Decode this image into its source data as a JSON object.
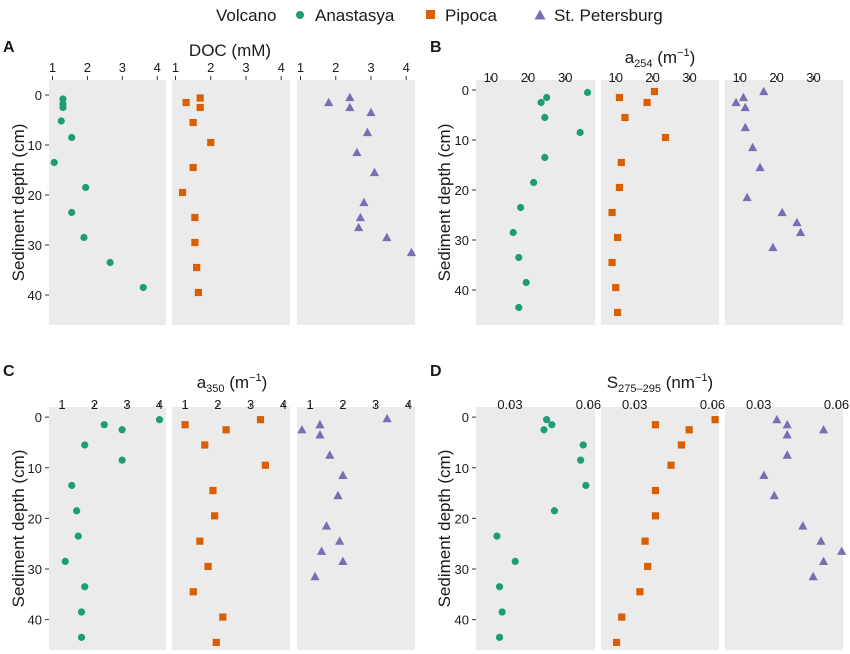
{
  "legend": {
    "title": "Volcano",
    "items": [
      {
        "label": "Anastasya",
        "color": "#1b9e77",
        "shape": "circle"
      },
      {
        "label": "Pipoca",
        "color": "#d95f02",
        "shape": "square"
      },
      {
        "label": "St. Petersburg",
        "color": "#7570b3",
        "shape": "triangle"
      }
    ]
  },
  "ylabel": "Sediment depth (cm)",
  "chart_data": [
    {
      "type": "scatter",
      "panel_letter": "A",
      "title": "DOC (mM)",
      "ylabel": "Sediment depth (cm)",
      "ylim": [
        -3,
        46
      ],
      "yticks": [
        0,
        10,
        20,
        30,
        40
      ],
      "facets": [
        {
          "series": "Anastasya",
          "xlim": [
            0.9,
            4.25
          ],
          "xticks": [
            1,
            2,
            3,
            4
          ],
          "points": [
            [
              1.3,
              0.8
            ],
            [
              1.3,
              1.8
            ],
            [
              1.3,
              2.5
            ],
            [
              1.25,
              5.2
            ],
            [
              1.55,
              8.5
            ],
            [
              1.05,
              13.5
            ],
            [
              1.95,
              18.5
            ],
            [
              1.55,
              23.5
            ],
            [
              1.9,
              28.5
            ],
            [
              2.65,
              33.5
            ],
            [
              3.6,
              38.5
            ]
          ]
        },
        {
          "series": "Pipoca",
          "xlim": [
            0.9,
            4.25
          ],
          "xticks": [
            1,
            2,
            3,
            4
          ],
          "points": [
            [
              1.7,
              0.6
            ],
            [
              1.3,
              1.5
            ],
            [
              1.7,
              2.5
            ],
            [
              1.5,
              5.5
            ],
            [
              2.0,
              9.5
            ],
            [
              1.5,
              14.5
            ],
            [
              1.2,
              19.5
            ],
            [
              1.55,
              24.5
            ],
            [
              1.55,
              29.5
            ],
            [
              1.6,
              34.5
            ],
            [
              1.65,
              39.5
            ]
          ]
        },
        {
          "series": "St. Petersburg",
          "xlim": [
            0.9,
            4.25
          ],
          "xticks": [
            1,
            2,
            3,
            4
          ],
          "points": [
            [
              2.4,
              0.5
            ],
            [
              1.8,
              1.5
            ],
            [
              2.4,
              2.5
            ],
            [
              3.0,
              3.5
            ],
            [
              2.9,
              7.5
            ],
            [
              2.6,
              11.5
            ],
            [
              3.1,
              15.5
            ],
            [
              2.8,
              21.5
            ],
            [
              2.7,
              24.5
            ],
            [
              2.65,
              26.5
            ],
            [
              3.45,
              28.5
            ],
            [
              4.15,
              31.5
            ]
          ]
        }
      ]
    },
    {
      "type": "scatter",
      "panel_letter": "B",
      "title": "a254 (m−1)",
      "title_parts": [
        "a",
        "254",
        " (m",
        "−1",
        ")"
      ],
      "ylabel": "Sediment depth (cm)",
      "ylim": [
        -2,
        47
      ],
      "yticks": [
        0,
        10,
        20,
        30,
        40
      ],
      "facets": [
        {
          "series": "Anastasya",
          "xlim": [
            6,
            38
          ],
          "xticks": [
            10,
            20,
            30
          ],
          "points": [
            [
              36,
              0.5
            ],
            [
              25,
              1.5
            ],
            [
              23.5,
              2.5
            ],
            [
              24.5,
              5.5
            ],
            [
              34,
              8.5
            ],
            [
              24.5,
              13.5
            ],
            [
              21.5,
              18.5
            ],
            [
              18,
              23.5
            ],
            [
              16,
              28.5
            ],
            [
              17.5,
              33.5
            ],
            [
              19.5,
              38.5
            ],
            [
              17.5,
              43.5
            ]
          ]
        },
        {
          "series": "Pipoca",
          "xlim": [
            6,
            38
          ],
          "xticks": [
            10,
            20,
            30
          ],
          "points": [
            [
              20.5,
              0.3
            ],
            [
              11,
              1.5
            ],
            [
              18.5,
              2.5
            ],
            [
              12.5,
              5.5
            ],
            [
              23.5,
              9.5
            ],
            [
              11.5,
              14.5
            ],
            [
              11,
              19.5
            ],
            [
              9,
              24.5
            ],
            [
              10.5,
              29.5
            ],
            [
              9,
              34.5
            ],
            [
              10,
              39.5
            ],
            [
              10.5,
              44.5
            ]
          ]
        },
        {
          "series": "St. Petersburg",
          "xlim": [
            6,
            38
          ],
          "xticks": [
            10,
            20,
            30
          ],
          "points": [
            [
              16.5,
              0.3
            ],
            [
              11,
              1.5
            ],
            [
              9,
              2.5
            ],
            [
              11.5,
              3.5
            ],
            [
              11.5,
              7.5
            ],
            [
              13.5,
              11.5
            ],
            [
              15.5,
              15.5
            ],
            [
              12,
              21.5
            ],
            [
              21.5,
              24.5
            ],
            [
              25.5,
              26.5
            ],
            [
              26.5,
              28.5
            ],
            [
              19,
              31.5
            ]
          ]
        }
      ]
    },
    {
      "type": "scatter",
      "panel_letter": "C",
      "title": "a350 (m−1)",
      "title_parts": [
        "a",
        "350",
        " (m",
        "−1",
        ")"
      ],
      "ylabel": "Sediment depth (cm)",
      "ylim": [
        -2,
        46
      ],
      "yticks": [
        0,
        10,
        20,
        30,
        40
      ],
      "facets": [
        {
          "series": "Anastasya",
          "xlim": [
            0.6,
            4.2
          ],
          "xticks": [
            1,
            2,
            3,
            4
          ],
          "points": [
            [
              4.0,
              0.5
            ],
            [
              2.3,
              1.5
            ],
            [
              2.85,
              2.5
            ],
            [
              1.7,
              5.5
            ],
            [
              2.85,
              8.5
            ],
            [
              1.3,
              13.5
            ],
            [
              1.45,
              18.5
            ],
            [
              1.5,
              23.5
            ],
            [
              1.1,
              28.5
            ],
            [
              1.7,
              33.5
            ],
            [
              1.6,
              38.5
            ],
            [
              1.6,
              43.5
            ]
          ]
        },
        {
          "series": "Pipoca",
          "xlim": [
            0.6,
            4.2
          ],
          "xticks": [
            1,
            2,
            3,
            4
          ],
          "points": [
            [
              3.3,
              0.5
            ],
            [
              1.0,
              1.5
            ],
            [
              2.25,
              2.5
            ],
            [
              1.6,
              5.5
            ],
            [
              3.45,
              9.5
            ],
            [
              1.85,
              14.5
            ],
            [
              1.9,
              19.5
            ],
            [
              1.45,
              24.5
            ],
            [
              1.7,
              29.5
            ],
            [
              1.25,
              34.5
            ],
            [
              2.15,
              39.5
            ],
            [
              1.95,
              44.5
            ]
          ]
        },
        {
          "series": "St. Petersburg",
          "xlim": [
            0.6,
            4.2
          ],
          "xticks": [
            1,
            2,
            3,
            4
          ],
          "points": [
            [
              3.35,
              0.3
            ],
            [
              1.3,
              1.5
            ],
            [
              0.75,
              2.5
            ],
            [
              1.3,
              3.5
            ],
            [
              1.6,
              7.5
            ],
            [
              2.0,
              11.5
            ],
            [
              1.85,
              15.5
            ],
            [
              1.5,
              21.5
            ],
            [
              1.9,
              24.5
            ],
            [
              1.35,
              26.5
            ],
            [
              2.0,
              28.5
            ],
            [
              1.15,
              31.5
            ]
          ]
        }
      ]
    },
    {
      "type": "scatter",
      "panel_letter": "D",
      "title": "S275–295 (nm−1)",
      "title_parts": [
        "S",
        "275–295",
        " (nm",
        "−1",
        ")"
      ],
      "ylabel": "Sediment depth (cm)",
      "ylim": [
        -2,
        46
      ],
      "yticks": [
        0,
        10,
        20,
        30,
        40
      ],
      "facets": [
        {
          "series": "Anastasya",
          "xlim": [
            0.017,
            0.0625
          ],
          "xticks": [
            0.03,
            0.06
          ],
          "points": [
            [
              0.044,
              0.5
            ],
            [
              0.046,
              1.5
            ],
            [
              0.043,
              2.5
            ],
            [
              0.058,
              5.5
            ],
            [
              0.057,
              8.5
            ],
            [
              0.059,
              13.5
            ],
            [
              0.047,
              18.5
            ],
            [
              0.025,
              23.5
            ],
            [
              0.032,
              28.5
            ],
            [
              0.026,
              33.5
            ],
            [
              0.027,
              38.5
            ],
            [
              0.026,
              43.5
            ]
          ]
        },
        {
          "series": "Pipoca",
          "xlim": [
            0.017,
            0.0625
          ],
          "xticks": [
            0.03,
            0.06
          ],
          "points": [
            [
              0.061,
              0.5
            ],
            [
              0.038,
              1.5
            ],
            [
              0.051,
              2.5
            ],
            [
              0.048,
              5.5
            ],
            [
              0.044,
              9.5
            ],
            [
              0.038,
              14.5
            ],
            [
              0.038,
              19.5
            ],
            [
              0.034,
              24.5
            ],
            [
              0.035,
              29.5
            ],
            [
              0.032,
              34.5
            ],
            [
              0.025,
              39.5
            ],
            [
              0.023,
              44.5
            ]
          ]
        },
        {
          "series": "St. Petersburg",
          "xlim": [
            0.017,
            0.0625
          ],
          "xticks": [
            0.03,
            0.06
          ],
          "points": [
            [
              0.037,
              0.5
            ],
            [
              0.041,
              1.5
            ],
            [
              0.055,
              2.5
            ],
            [
              0.041,
              3.5
            ],
            [
              0.041,
              7.5
            ],
            [
              0.032,
              11.5
            ],
            [
              0.036,
              15.5
            ],
            [
              0.047,
              21.5
            ],
            [
              0.054,
              24.5
            ],
            [
              0.062,
              26.5
            ],
            [
              0.055,
              28.5
            ],
            [
              0.051,
              31.5
            ]
          ]
        }
      ]
    }
  ]
}
